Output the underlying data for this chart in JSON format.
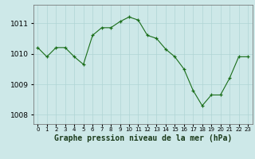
{
  "x": [
    0,
    1,
    2,
    3,
    4,
    5,
    6,
    7,
    8,
    9,
    10,
    11,
    12,
    13,
    14,
    15,
    16,
    17,
    18,
    19,
    20,
    21,
    22,
    23
  ],
  "y": [
    1010.2,
    1009.9,
    1010.2,
    1010.2,
    1009.9,
    1009.65,
    1010.6,
    1010.85,
    1010.85,
    1011.05,
    1011.2,
    1011.1,
    1010.6,
    1010.5,
    1010.15,
    1009.9,
    1009.5,
    1008.8,
    1008.3,
    1008.65,
    1008.65,
    1009.2,
    1009.9,
    1009.9
  ],
  "line_color": "#1a6e1a",
  "marker_style": "+",
  "marker_size": 3,
  "background_color": "#cde8e8",
  "grid_color": "#b0d4d4",
  "xlabel": "Graphe pression niveau de la mer (hPa)",
  "xlabel_fontsize": 7,
  "ylabel_ticks": [
    1008,
    1009,
    1010,
    1011
  ],
  "xlim": [
    -0.5,
    23.5
  ],
  "ylim": [
    1007.7,
    1011.6
  ],
  "x_tick_labels": [
    "0",
    "1",
    "2",
    "3",
    "4",
    "5",
    "6",
    "7",
    "8",
    "9",
    "10",
    "11",
    "12",
    "13",
    "14",
    "15",
    "16",
    "17",
    "18",
    "19",
    "20",
    "21",
    "22",
    "23"
  ]
}
